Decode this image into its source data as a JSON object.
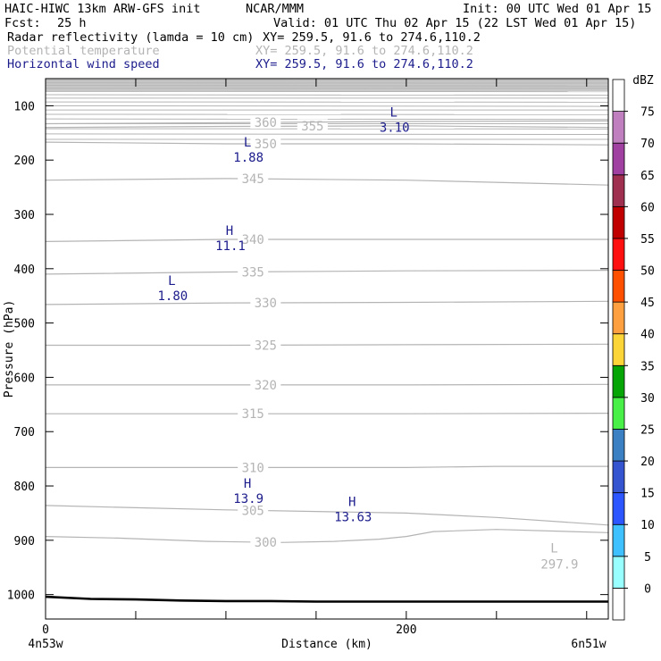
{
  "header": {
    "model": "HAIC-HIWC 13km ARW-GFS init",
    "org": "NCAR/MMM",
    "init": "Init: 00 UTC Wed 01 Apr 15",
    "fcst_label": "Fcst:",
    "fcst_value": "25 h",
    "valid": "Valid: 01 UTC Thu 02 Apr 15 (22 LST Wed 01 Apr 15)",
    "fields": [
      {
        "name": "Radar reflectivity (lamda = 10 cm)",
        "xy": "XY= 259.5, 91.6 to 274.6,110.2",
        "color": "#000000"
      },
      {
        "name": "Potential temperature",
        "xy": "XY= 259.5, 91.6 to 274.6,110.2",
        "color": "#b4b4b4"
      },
      {
        "name": "Horizontal wind speed",
        "xy": "XY= 259.5, 91.6 to 274.6,110.2",
        "color": "#1c1c8c"
      }
    ]
  },
  "chart_data": {
    "type": "cross-section",
    "xlabel": "Distance (km)",
    "ylabel": "Pressure (hPa)",
    "xlim": [
      0,
      312
    ],
    "ylim": [
      1045,
      50
    ],
    "x_ticks": [
      0,
      200
    ],
    "x_minor_ticks": [
      0,
      50,
      100,
      150,
      200,
      250,
      300
    ],
    "y_ticks": [
      100,
      200,
      300,
      400,
      500,
      600,
      700,
      800,
      900,
      1000
    ],
    "x_endpoint_labels": {
      "left": "4n53w",
      "right": "6n51w"
    },
    "surface_pressure": {
      "x": [
        0,
        25,
        50,
        75,
        100,
        125,
        150,
        200,
        250,
        312
      ],
      "p": [
        1004,
        1008,
        1009,
        1011,
        1012,
        1012,
        1013,
        1013,
        1013,
        1013
      ]
    },
    "theta_contours": [
      {
        "value": "300",
        "x": [
          0,
          40,
          90,
          130,
          160,
          185,
          200,
          215,
          250,
          312
        ],
        "p": [
          893,
          896,
          902,
          904,
          902,
          898,
          893,
          884,
          880,
          886
        ],
        "label_x": 122
      },
      {
        "value": "305",
        "x": [
          0,
          50,
          100,
          150,
          200,
          250,
          312
        ],
        "p": [
          836,
          840,
          844,
          847,
          850,
          858,
          872
        ],
        "label_x": 115
      },
      {
        "value": "310",
        "x": [
          0,
          50,
          100,
          150,
          200,
          250,
          312
        ],
        "p": [
          766,
          766,
          766,
          766,
          766,
          764,
          764
        ],
        "label_x": 115
      },
      {
        "value": "315",
        "x": [
          0,
          100,
          200,
          312
        ],
        "p": [
          667,
          667,
          667,
          666
        ],
        "label_x": 115
      },
      {
        "value": "320",
        "x": [
          0,
          100,
          200,
          312
        ],
        "p": [
          614,
          614,
          614,
          613
        ],
        "label_x": 122
      },
      {
        "value": "325",
        "x": [
          0,
          100,
          200,
          312
        ],
        "p": [
          541,
          541,
          540,
          539
        ],
        "label_x": 122
      },
      {
        "value": "330",
        "x": [
          0,
          100,
          200,
          312
        ],
        "p": [
          466,
          463,
          462,
          460
        ],
        "label_x": 122
      },
      {
        "value": "335",
        "x": [
          0,
          100,
          200,
          312
        ],
        "p": [
          410,
          406,
          404,
          403
        ],
        "label_x": 115
      },
      {
        "value": "340",
        "x": [
          0,
          100,
          200,
          312
        ],
        "p": [
          350,
          346,
          346,
          346
        ],
        "label_x": 115
      },
      {
        "value": "345",
        "x": [
          0,
          100,
          200,
          312
        ],
        "p": [
          237,
          234,
          237,
          246
        ],
        "label_x": 115
      },
      {
        "value": "350",
        "x": [
          0,
          100,
          200,
          312
        ],
        "p": [
          167,
          170,
          170,
          172
        ],
        "label_x": 122
      },
      {
        "value": "355",
        "x": [
          0,
          100,
          200,
          312
        ],
        "p": [
          140,
          138,
          137,
          140
        ],
        "label_x": 148
      },
      {
        "value": "360",
        "x": [
          0,
          100,
          200,
          312
        ],
        "p": [
          133,
          131,
          129,
          128
        ],
        "label_x": 122
      }
    ],
    "theta_extrema": [
      {
        "type": "L",
        "value": "297.9",
        "x": 282,
        "p": 952
      }
    ],
    "wind_extrema": [
      {
        "type": "L",
        "value": "3.10",
        "x": 193,
        "p": 120
      },
      {
        "type": "L",
        "value": "1.88",
        "x": 112,
        "p": 175
      },
      {
        "type": "H",
        "value": "11.1",
        "x": 102,
        "p": 338
      },
      {
        "type": "L",
        "value": "1.80",
        "x": 70,
        "p": 430
      },
      {
        "type": "H",
        "value": "13.9",
        "x": 112,
        "p": 803
      },
      {
        "type": "H",
        "value": "13.63",
        "x": 170,
        "p": 837
      }
    ],
    "colorbar": {
      "unit": "dBZ",
      "labels": [
        "0",
        "5",
        "10",
        "15",
        "20",
        "25",
        "30",
        "35",
        "40",
        "45",
        "50",
        "55",
        "60",
        "65",
        "70",
        "75"
      ],
      "colors": [
        "#ffffff",
        "#99ffff",
        "#3fc0ff",
        "#2c56ff",
        "#3454d0",
        "#3c80c4",
        "#48f048",
        "#04a504",
        "#fcd638",
        "#ffa040",
        "#ff5000",
        "#ff1010",
        "#c00000",
        "#a03050",
        "#a040a0",
        "#c080c0",
        "#ffffff"
      ]
    },
    "colors": {
      "theta": "#b4b4b4",
      "wind": "#1c1c8c",
      "axis": "#000000",
      "top_mask": "#c8c8c8"
    }
  }
}
